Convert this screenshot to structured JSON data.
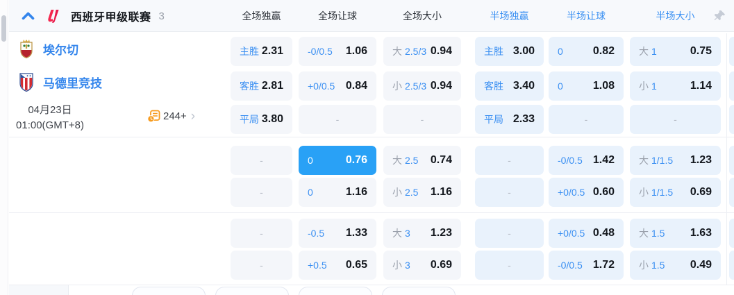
{
  "header": {
    "league": "西班牙甲级联赛",
    "match_count": "3",
    "columns": [
      {
        "label": "全场独赢"
      },
      {
        "label": "全场让球"
      },
      {
        "label": "全场大小"
      },
      {
        "label": "半场独赢"
      },
      {
        "label": "半场让球"
      },
      {
        "label": "半场大小"
      }
    ]
  },
  "match": {
    "home_team": "埃尔切",
    "away_team": "马德里竞技",
    "date": "04月23日",
    "time": "01:00(GMT+8)",
    "more_markets": "244+"
  },
  "odds_rows": [
    {
      "cells": [
        {
          "label": "主胜",
          "odds": "2.31"
        },
        {
          "label": "-0/0.5",
          "odds": "1.06"
        },
        {
          "label_gray": "大",
          "label": "2.5/3",
          "odds": "0.94"
        },
        {
          "label": "主胜",
          "odds": "3.00"
        },
        {
          "label": "0",
          "odds": "0.82"
        },
        {
          "label_gray": "大",
          "label": "1",
          "odds": "0.75"
        }
      ]
    },
    {
      "cells": [
        {
          "label": "客胜",
          "odds": "2.81"
        },
        {
          "label": "+0/0.5",
          "odds": "0.84"
        },
        {
          "label_gray": "小",
          "label": "2.5/3",
          "odds": "0.94"
        },
        {
          "label": "客胜",
          "odds": "3.40"
        },
        {
          "label": "0",
          "odds": "1.08"
        },
        {
          "label_gray": "小",
          "label": "1",
          "odds": "1.14"
        }
      ]
    },
    {
      "cells": [
        {
          "label": "平局",
          "odds": "3.80"
        },
        {
          "dash": "-"
        },
        {
          "dash": "-"
        },
        {
          "label": "平局",
          "odds": "2.33"
        },
        {
          "dash": "-"
        },
        {
          "dash": "-"
        }
      ]
    },
    {
      "cells": [
        {
          "dash": "-"
        },
        {
          "label": "0",
          "odds": "0.76",
          "highlight": true
        },
        {
          "label_gray": "大",
          "label": "2.5",
          "odds": "0.74"
        },
        {
          "dash": "-"
        },
        {
          "label": "-0/0.5",
          "odds": "1.42"
        },
        {
          "label_gray": "大",
          "label": "1/1.5",
          "odds": "1.23"
        }
      ]
    },
    {
      "cells": [
        {
          "dash": "-"
        },
        {
          "label": "0",
          "odds": "1.16"
        },
        {
          "label_gray": "小",
          "label": "2.5",
          "odds": "1.16"
        },
        {
          "dash": "-"
        },
        {
          "label": "+0/0.5",
          "odds": "0.60"
        },
        {
          "label_gray": "小",
          "label": "1/1.5",
          "odds": "0.69"
        }
      ]
    },
    {
      "cells": [
        {
          "dash": "-"
        },
        {
          "label": "-0.5",
          "odds": "1.33"
        },
        {
          "label_gray": "大",
          "label": "3",
          "odds": "1.23"
        },
        {
          "dash": "-"
        },
        {
          "label": "+0/0.5",
          "odds": "0.48"
        },
        {
          "label_gray": "大",
          "label": "1.5",
          "odds": "1.63"
        }
      ]
    },
    {
      "cells": [
        {
          "dash": "-"
        },
        {
          "label": "+0.5",
          "odds": "0.65"
        },
        {
          "label_gray": "小",
          "label": "3",
          "odds": "0.69"
        },
        {
          "dash": "-"
        },
        {
          "label": "-0/0.5",
          "odds": "1.72"
        },
        {
          "label_gray": "小",
          "label": "1.5",
          "odds": "0.49"
        }
      ]
    }
  ],
  "colors": {
    "accent_blue": "#3a90f2",
    "highlight_cell": "#29a1f6",
    "cell_gray": "#f4f6fa",
    "cell_blue": "#e9f2fc",
    "odds_text": "#14181e",
    "team_name": "#3385ec",
    "laliga_red": "#f5274e",
    "markets_orange": "#f79b1e",
    "dash_gray": "#b7bdc7"
  }
}
